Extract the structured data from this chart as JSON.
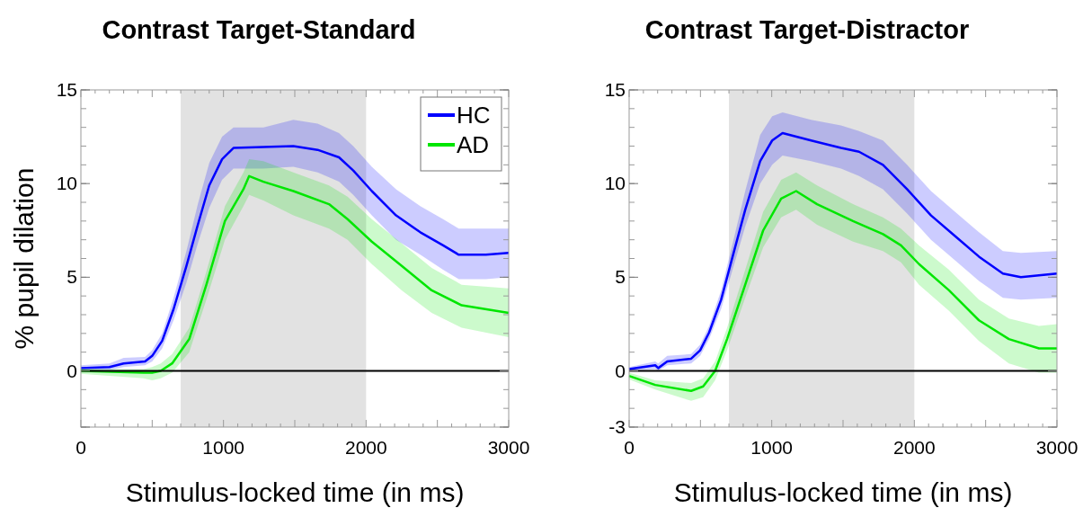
{
  "chart_data": [
    {
      "type": "line",
      "title": "Contrast Target-Standard",
      "xlabel": "Stimulus-locked time (in ms)",
      "ylabel": "% pupil dilation",
      "xlim": [
        0,
        3000
      ],
      "ylim": [
        -3,
        15
      ],
      "xticks": [
        0,
        1000,
        2000,
        3000
      ],
      "yticks": [
        {
          "value": -3,
          "label": null
        },
        0,
        5,
        10,
        15
      ],
      "legend": "top right",
      "grid": false,
      "bands": [
        {
          "axis": "x",
          "from": 700,
          "to": 2000,
          "color": "#e2e2e2"
        }
      ],
      "ref_lines": [
        {
          "axis": "y",
          "value": 0,
          "color": "#000000"
        }
      ],
      "series": [
        {
          "name": "HC",
          "color": "#0000ff",
          "x": [
            0,
            200,
            300,
            450,
            500,
            570,
            650,
            740,
            820,
            900,
            990,
            1070,
            1280,
            1490,
            1660,
            1810,
            1910,
            2040,
            2210,
            2380,
            2540,
            2650,
            2840,
            3000
          ],
          "values": [
            0.15,
            0.2,
            0.4,
            0.5,
            0.8,
            1.6,
            3.3,
            5.6,
            7.8,
            9.9,
            11.3,
            11.9,
            11.95,
            12.0,
            11.8,
            11.4,
            10.7,
            9.6,
            8.3,
            7.4,
            6.7,
            6.2,
            6.2,
            6.3
          ],
          "upper": [
            0.3,
            0.4,
            0.7,
            0.75,
            1.1,
            2.0,
            3.9,
            6.4,
            8.9,
            11.1,
            12.5,
            13.0,
            13.0,
            13.4,
            13.2,
            12.7,
            12.0,
            10.9,
            9.7,
            8.8,
            8.1,
            7.6,
            7.6,
            7.6
          ],
          "lower": [
            0.0,
            0.05,
            0.2,
            0.3,
            0.5,
            1.2,
            2.7,
            4.7,
            6.8,
            8.7,
            10.2,
            10.8,
            10.8,
            10.9,
            10.6,
            10.1,
            9.4,
            8.3,
            7.0,
            6.2,
            5.4,
            4.9,
            4.9,
            5.0
          ]
        },
        {
          "name": "AD",
          "color": "#00e600",
          "x": [
            0,
            440,
            500,
            560,
            640,
            760,
            880,
            1010,
            1140,
            1180,
            1280,
            1490,
            1740,
            1870,
            2040,
            2250,
            2460,
            2670,
            3000
          ],
          "values": [
            0,
            -0.1,
            -0.1,
            0,
            0.4,
            1.7,
            4.6,
            8.0,
            9.7,
            10.4,
            10.1,
            9.6,
            8.9,
            8.1,
            6.9,
            5.6,
            4.3,
            3.5,
            3.1
          ],
          "upper": [
            0.1,
            0.1,
            0.2,
            0.4,
            0.9,
            2.3,
            5.3,
            8.8,
            10.6,
            11.3,
            11.2,
            10.6,
            9.9,
            9.3,
            8.1,
            6.8,
            5.5,
            4.6,
            4.4
          ],
          "lower": [
            -0.15,
            -0.4,
            -0.5,
            -0.4,
            -0.1,
            1.0,
            3.8,
            7.0,
            8.8,
            9.4,
            9.1,
            8.3,
            7.6,
            7.0,
            5.7,
            4.3,
            3.1,
            2.3,
            1.8
          ]
        }
      ]
    },
    {
      "type": "line",
      "title": "Contrast Target-Distractor",
      "xlabel": "Stimulus-locked time (in ms)",
      "xlim": [
        0,
        3000
      ],
      "ylim": [
        -3,
        15
      ],
      "xticks": [
        0,
        1000,
        2000,
        3000
      ],
      "yticks": [
        -3,
        0,
        5,
        10,
        15
      ],
      "grid": false,
      "bands": [
        {
          "axis": "x",
          "from": 700,
          "to": 2000,
          "color": "#e2e2e2"
        }
      ],
      "ref_lines": [
        {
          "axis": "y",
          "value": 0,
          "color": "#000000"
        }
      ],
      "series": [
        {
          "color": "#0000ff",
          "x": [
            0,
            183,
            204,
            267,
            435,
            498,
            561,
            645,
            729,
            814,
            919,
            1003,
            1076,
            1276,
            1486,
            1612,
            1780,
            1949,
            2117,
            2285,
            2453,
            2621,
            2747,
            3000
          ],
          "values": [
            0.1,
            0.3,
            0.15,
            0.5,
            0.65,
            1.1,
            2.05,
            3.8,
            6.2,
            8.6,
            11.2,
            12.3,
            12.7,
            12.3,
            11.9,
            11.7,
            11.0,
            9.7,
            8.3,
            7.2,
            6.1,
            5.2,
            5.0,
            5.2
          ],
          "upper": [
            0.2,
            0.5,
            0.4,
            0.8,
            0.9,
            1.4,
            2.4,
            4.3,
            6.9,
            9.6,
            12.6,
            13.6,
            13.8,
            13.4,
            13.1,
            12.8,
            12.3,
            11.0,
            9.6,
            8.5,
            7.4,
            6.4,
            6.3,
            6.4
          ],
          "lower": [
            0.0,
            0.1,
            0.0,
            0.3,
            0.4,
            0.8,
            1.7,
            3.3,
            5.5,
            7.7,
            10.0,
            11.0,
            11.5,
            11.2,
            10.8,
            10.4,
            9.7,
            8.4,
            7.0,
            5.9,
            4.8,
            3.9,
            3.8,
            3.9
          ]
        },
        {
          "color": "#00e600",
          "x": [
            0,
            183,
            435,
            519,
            603,
            687,
            814,
            940,
            1066,
            1171,
            1318,
            1570,
            1780,
            1906,
            2033,
            2243,
            2453,
            2663,
            2874,
            3000
          ],
          "values": [
            -0.27,
            -0.75,
            -1.07,
            -0.83,
            0,
            1.7,
            4.6,
            7.5,
            9.2,
            9.6,
            8.9,
            8.0,
            7.3,
            6.7,
            5.7,
            4.3,
            2.7,
            1.7,
            1.2,
            1.2
          ],
          "upper": [
            -0.1,
            -0.5,
            -0.65,
            -0.4,
            0.5,
            2.3,
            5.4,
            8.5,
            10.2,
            10.6,
            9.9,
            8.9,
            8.2,
            7.6,
            6.7,
            5.4,
            3.8,
            2.8,
            2.4,
            2.5
          ],
          "lower": [
            -0.45,
            -1.0,
            -1.6,
            -1.4,
            -0.5,
            1.1,
            3.9,
            6.6,
            8.2,
            8.6,
            7.8,
            6.9,
            6.4,
            5.8,
            4.6,
            3.2,
            1.6,
            0.4,
            -0.1,
            -0.1
          ]
        }
      ]
    }
  ]
}
